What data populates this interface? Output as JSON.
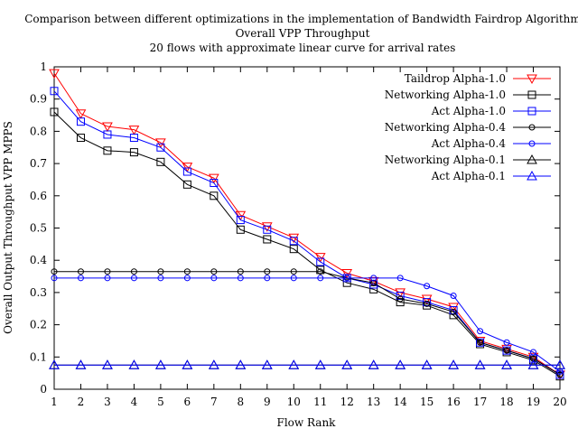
{
  "chart_data": {
    "type": "line",
    "title": [
      "Comparison between different optimizations in the implementation of Bandwidth Fairdrop Algorithm",
      "Overall VPP Throughput",
      "20 flows with approximate linear curve for arrival rates"
    ],
    "xlabel": "Flow Rank",
    "ylabel": "Overall Output Throughput VPP MPPS",
    "xlim": [
      1,
      20
    ],
    "ylim": [
      0,
      1
    ],
    "x_ticks": [
      1,
      2,
      3,
      4,
      5,
      6,
      7,
      8,
      9,
      10,
      11,
      12,
      13,
      14,
      15,
      16,
      17,
      18,
      19,
      20
    ],
    "y_ticks": [
      0,
      0.1,
      0.2,
      0.3,
      0.4,
      0.5,
      0.6,
      0.7,
      0.8,
      0.9,
      1
    ],
    "y_tick_labels": [
      "0",
      "0.1",
      "0.2",
      "0.3",
      "0.4",
      "0.5",
      "0.6",
      "0.7",
      "0.8",
      "0.9",
      "1"
    ],
    "legend_position": "top-right",
    "grid": false,
    "x": [
      1,
      2,
      3,
      4,
      5,
      6,
      7,
      8,
      9,
      10,
      11,
      12,
      13,
      14,
      15,
      16,
      17,
      18,
      19,
      20
    ],
    "series": [
      {
        "name": "Taildrop Alpha-1.0",
        "color": "#ff0000",
        "marker": "triangle-down",
        "values": [
          0.98,
          0.855,
          0.815,
          0.805,
          0.765,
          0.69,
          0.655,
          0.54,
          0.505,
          0.47,
          0.41,
          0.36,
          0.335,
          0.3,
          0.28,
          0.255,
          0.15,
          0.125,
          0.1,
          0.045
        ]
      },
      {
        "name": "Networking Alpha-1.0",
        "color": "#000000",
        "marker": "square",
        "values": [
          0.86,
          0.78,
          0.74,
          0.735,
          0.705,
          0.635,
          0.6,
          0.495,
          0.465,
          0.435,
          0.37,
          0.33,
          0.31,
          0.27,
          0.26,
          0.23,
          0.14,
          0.115,
          0.09,
          0.04
        ]
      },
      {
        "name": "Act Alpha-1.0",
        "color": "#0000ff",
        "marker": "square",
        "values": [
          0.925,
          0.83,
          0.79,
          0.78,
          0.75,
          0.675,
          0.64,
          0.525,
          0.495,
          0.46,
          0.395,
          0.345,
          0.325,
          0.29,
          0.27,
          0.245,
          0.145,
          0.12,
          0.095,
          0.045
        ]
      },
      {
        "name": "Networking Alpha-0.4",
        "color": "#000000",
        "marker": "circle",
        "values": [
          0.365,
          0.365,
          0.365,
          0.365,
          0.365,
          0.365,
          0.365,
          0.365,
          0.365,
          0.365,
          0.365,
          0.345,
          0.33,
          0.28,
          0.265,
          0.24,
          0.145,
          0.12,
          0.095,
          0.045
        ]
      },
      {
        "name": "Act Alpha-0.4",
        "color": "#0000ff",
        "marker": "circle",
        "values": [
          0.345,
          0.345,
          0.345,
          0.345,
          0.345,
          0.345,
          0.345,
          0.345,
          0.345,
          0.345,
          0.345,
          0.345,
          0.345,
          0.345,
          0.32,
          0.29,
          0.18,
          0.145,
          0.115,
          0.055
        ]
      },
      {
        "name": "Networking Alpha-0.1",
        "color": "#000000",
        "marker": "triangle-up",
        "values": [
          0.075,
          0.075,
          0.075,
          0.075,
          0.075,
          0.075,
          0.075,
          0.075,
          0.075,
          0.075,
          0.075,
          0.075,
          0.075,
          0.075,
          0.075,
          0.075,
          0.075,
          0.075,
          0.075,
          0.075
        ]
      },
      {
        "name": "Act Alpha-0.1",
        "color": "#0000ff",
        "marker": "triangle-up",
        "values": [
          0.075,
          0.075,
          0.075,
          0.075,
          0.075,
          0.075,
          0.075,
          0.075,
          0.075,
          0.075,
          0.075,
          0.075,
          0.075,
          0.075,
          0.075,
          0.075,
          0.075,
          0.075,
          0.075,
          0.075
        ]
      }
    ]
  }
}
